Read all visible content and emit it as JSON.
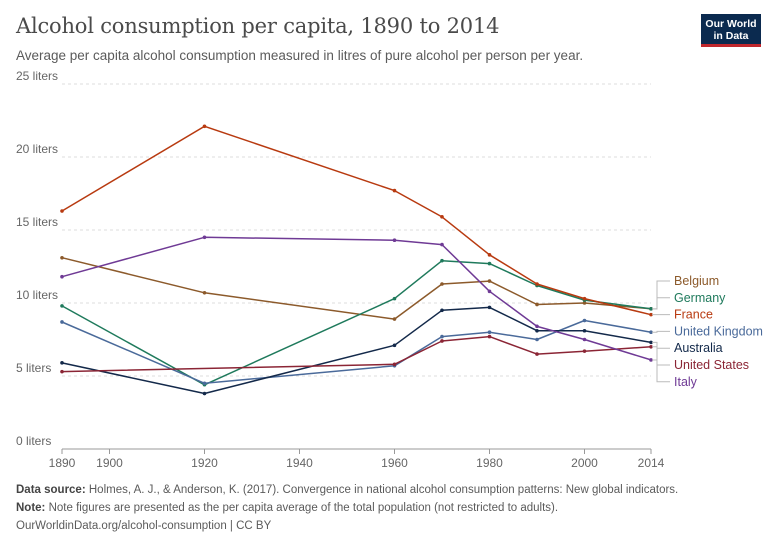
{
  "header": {
    "title": "Alcohol consumption per capita, 1890 to 2014",
    "subtitle": "Average per capita alcohol consumption measured in litres of pure alcohol per person per year.",
    "logo_line1": "Our World",
    "logo_line2": "in Data"
  },
  "footer": {
    "source_label": "Data source:",
    "source_text": " Holmes, A. J., & Anderson, K. (2017). Convergence in national alcohol consumption patterns: New global indicators.",
    "note_label": "Note:",
    "note_text": " Note figures are presented as the per capita average of the total population (not restricted to adults).",
    "url": "OurWorldinData.org/alcohol-consumption | CC BY"
  },
  "chart_data": {
    "type": "line",
    "title": "Alcohol consumption per capita, 1890 to 2014",
    "xlabel": "",
    "ylabel": "",
    "xlim": [
      1890,
      2014
    ],
    "ylim": [
      0,
      25
    ],
    "x_ticks": [
      1890,
      1900,
      1920,
      1940,
      1960,
      1980,
      2000,
      2014
    ],
    "y_ticks": [
      0,
      5,
      10,
      15,
      20,
      25
    ],
    "y_tick_labels": [
      "0 liters",
      "5 liters",
      "10 liters",
      "15 liters",
      "20 liters",
      "25 liters"
    ],
    "grid": "horizontal dashed",
    "legend": "right, end-of-line labels",
    "series": [
      {
        "name": "Belgium",
        "color": "#8c5a2b",
        "x": [
          1890,
          1920,
          1960,
          1970,
          1980,
          1990,
          2000,
          2014
        ],
        "y": [
          13.1,
          10.7,
          8.9,
          11.3,
          11.5,
          9.9,
          10.0,
          9.6
        ]
      },
      {
        "name": "Germany",
        "color": "#1f7a5c",
        "x": [
          1890,
          1920,
          1960,
          1970,
          1980,
          1990,
          2000,
          2014
        ],
        "y": [
          9.8,
          4.4,
          10.3,
          12.9,
          12.7,
          11.2,
          10.2,
          9.6
        ]
      },
      {
        "name": "France",
        "color": "#b83a10",
        "x": [
          1890,
          1920,
          1960,
          1970,
          1980,
          1990,
          2000,
          2014
        ],
        "y": [
          16.3,
          22.1,
          17.7,
          15.9,
          13.3,
          11.3,
          10.3,
          9.2
        ]
      },
      {
        "name": "United Kingdom",
        "color": "#4a6a9a",
        "x": [
          1890,
          1920,
          1960,
          1970,
          1980,
          1990,
          2000,
          2014
        ],
        "y": [
          8.7,
          4.5,
          5.7,
          7.7,
          8.0,
          7.5,
          8.8,
          8.0
        ]
      },
      {
        "name": "Australia",
        "color": "#13294a",
        "x": [
          1890,
          1920,
          1960,
          1970,
          1980,
          1990,
          2000,
          2014
        ],
        "y": [
          5.9,
          3.8,
          7.1,
          9.5,
          9.7,
          8.1,
          8.1,
          7.3
        ]
      },
      {
        "name": "United States",
        "color": "#8b2535",
        "x": [
          1890,
          1960,
          1970,
          1980,
          1990,
          2000,
          2014
        ],
        "y": [
          5.3,
          5.8,
          7.4,
          7.7,
          6.5,
          6.7,
          7.0
        ]
      },
      {
        "name": "Italy",
        "color": "#6f3a95",
        "x": [
          1890,
          1920,
          1960,
          1970,
          1980,
          1990,
          2000,
          2014
        ],
        "y": [
          11.8,
          14.5,
          14.3,
          14.0,
          10.8,
          8.4,
          7.5,
          6.1
        ]
      }
    ]
  }
}
